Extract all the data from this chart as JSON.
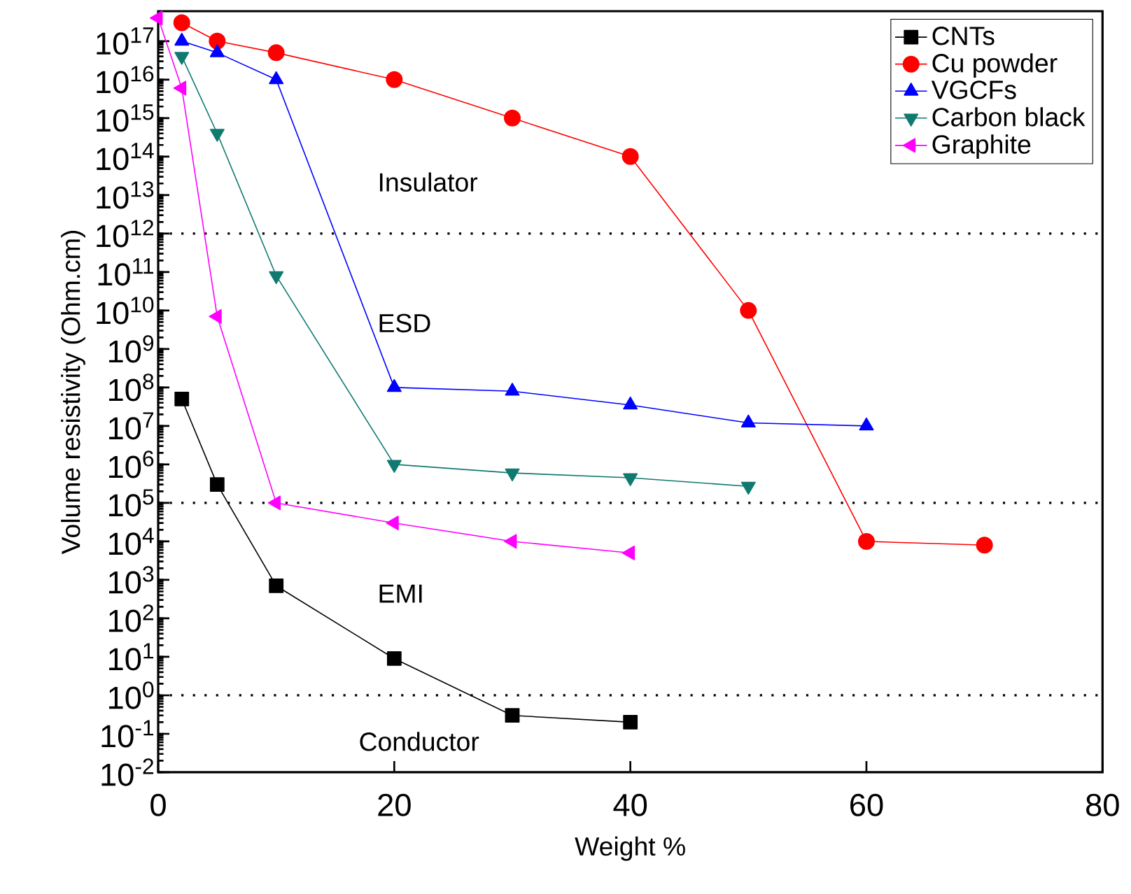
{
  "chart_data": {
    "type": "line",
    "xlabel": "Weight %",
    "ylabel": "Volume resistivity (Ohm.cm)",
    "log": "y",
    "xlim": [
      0,
      80
    ],
    "xticks": [
      0,
      20,
      40,
      60,
      80
    ],
    "ylim": [
      0.01,
      6e+17
    ],
    "yticks": [
      {
        "value": 0.01,
        "label": "10$^{-2}$"
      },
      {
        "value": 0.1,
        "label": "10$^{-1}$"
      },
      {
        "value": 1,
        "label": "10$^{0}$"
      },
      {
        "value": 10,
        "label": "10$^{1}$"
      },
      {
        "value": 100,
        "label": "10$^{2}$"
      },
      {
        "value": 1000.0,
        "label": "10$^{3}$"
      },
      {
        "value": 10000.0,
        "label": "10$^{4}$"
      },
      {
        "value": 100000.0,
        "label": "10$^{5}$"
      },
      {
        "value": 1000000.0,
        "label": "10$^{6}$"
      },
      {
        "value": 10000000.0,
        "label": "10$^{7}$"
      },
      {
        "value": 100000000.0,
        "label": "10$^{8}$"
      },
      {
        "value": 1000000000.0,
        "label": "10$^{9}$"
      },
      {
        "value": 10000000000.0,
        "label": "10$^{10}$"
      },
      {
        "value": 100000000000.0,
        "label": "10$^{11}$"
      },
      {
        "value": 1000000000000.0,
        "label": "10$^{12}$"
      },
      {
        "value": 10000000000000.0,
        "label": "10$^{13}$"
      },
      {
        "value": 100000000000000.0,
        "label": "10$^{14}$"
      },
      {
        "value": 1000000000000000.0,
        "label": "10$^{15}$"
      },
      {
        "value": 1e+16,
        "label": "10$^{16}$"
      },
      {
        "value": 1e+17,
        "label": "10$^{17}$"
      }
    ],
    "grid": false,
    "legend": "top right",
    "line_style": "solid",
    "series": [
      {
        "name": "CNTs",
        "color": "#000000",
        "marker": "square",
        "x": [
          2,
          5,
          10,
          20,
          30,
          40
        ],
        "values": [
          50000000.0,
          300000.0,
          700,
          9,
          0.3,
          0.2
        ]
      },
      {
        "name": "Cu powder",
        "color": "#ff0000",
        "marker": "circle",
        "x": [
          2,
          5,
          10,
          20,
          30,
          40,
          50,
          60,
          70
        ],
        "values": [
          3e+17,
          1e+17,
          5e+16,
          1e+16,
          1000000000000000.0,
          100000000000000.0,
          10000000000.0,
          10000.0,
          8000.0
        ]
      },
      {
        "name": "VGCFs",
        "color": "#0000ff",
        "marker": "triangle",
        "x": [
          2,
          5,
          10,
          20,
          30,
          40,
          50,
          60
        ],
        "values": [
          1e+17,
          5e+16,
          1e+16,
          100000000.0,
          80000000.0,
          35000000.0,
          12000000.0,
          10000000.0
        ]
      },
      {
        "name": "Carbon black",
        "color": "#107a70",
        "marker": "triangle-down",
        "x": [
          2,
          5,
          10,
          20,
          30,
          40,
          50
        ],
        "values": [
          4e+16,
          400000000000000.0,
          80000000000.0,
          1000000.0,
          600000.0,
          450000.0,
          270000.0
        ]
      },
      {
        "name": "Graphite",
        "color": "#ff00ff",
        "marker": "triangle-left",
        "x": [
          0,
          2,
          5,
          10,
          20,
          30,
          40
        ],
        "values": [
          4e+17,
          6000000000000000.0,
          7000000000.0,
          100000.0,
          30000.0,
          10000.0,
          5000.0
        ]
      }
    ],
    "ref_lines": [
      {
        "axis": "y",
        "value": 1000000000000.0,
        "line_style": "dotted",
        "color": "#000000"
      },
      {
        "axis": "y",
        "value": 100000.0,
        "line_style": "dotted",
        "color": "#000000"
      },
      {
        "axis": "y",
        "value": 1,
        "line_style": "dotted",
        "color": "#000000"
      }
    ],
    "annotations": [
      "Insulator",
      "ESD",
      "EMI",
      "Conductor"
    ]
  }
}
